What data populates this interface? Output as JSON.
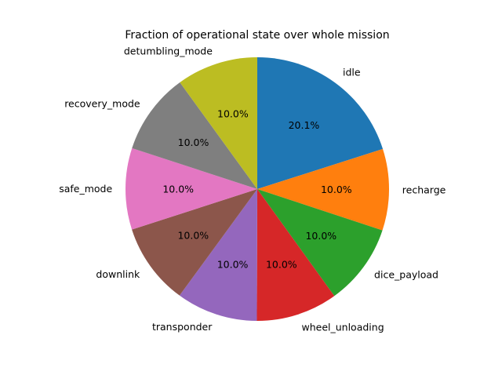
{
  "chart_data": {
    "type": "pie",
    "title": "Fraction of operational state over whole mission",
    "start_angle_deg": 90,
    "direction": "clockwise",
    "categories": [
      "idle",
      "recharge",
      "dice_payload",
      "wheel_unloading",
      "transponder",
      "downlink",
      "safe_mode",
      "recovery_mode",
      "detumbling_mode"
    ],
    "values": [
      20.1,
      10.0,
      10.0,
      10.0,
      10.0,
      10.0,
      10.0,
      10.0,
      10.0
    ],
    "value_labels": [
      "20.1%",
      "10.0%",
      "10.0%",
      "10.0%",
      "10.0%",
      "10.0%",
      "10.0%",
      "10.0%",
      "10.0%"
    ],
    "colors": [
      "#1f77b4",
      "#ff7f0e",
      "#2ca02c",
      "#d62728",
      "#9467bd",
      "#8c564b",
      "#e377c2",
      "#7f7f7f",
      "#bcbd22"
    ]
  }
}
